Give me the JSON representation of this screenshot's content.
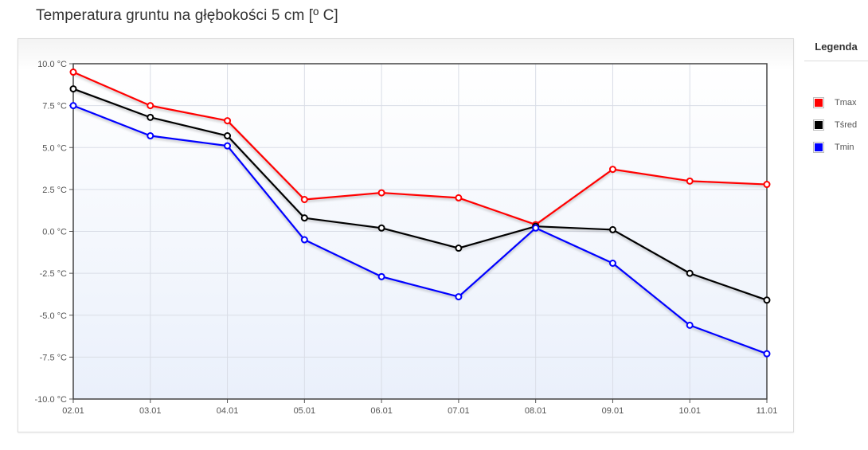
{
  "page": {
    "title": "Temperatura gruntu na głębokości 5 cm [º C]"
  },
  "legend": {
    "title": "Legenda",
    "items": [
      {
        "label": "Tmax",
        "color": "#ff0000"
      },
      {
        "label": "Tśred",
        "color": "#000000"
      },
      {
        "label": "Tmin",
        "color": "#0000ff"
      }
    ]
  },
  "chart_data": {
    "type": "line",
    "title": "Temperatura gruntu na głębokości 5 cm [º C]",
    "categories": [
      "02.01",
      "03.01",
      "04.01",
      "05.01",
      "06.01",
      "07.01",
      "08.01",
      "09.01",
      "10.01",
      "11.01"
    ],
    "y_ticks": [
      "10.0 °C",
      "7.5 °C",
      "5.0 °C",
      "2.5 °C",
      "0.0 °C",
      "-2.5 °C",
      "-5.0 °C",
      "-7.5 °C",
      "-10.0 °C"
    ],
    "ylim": [
      -10,
      10
    ],
    "y_unit": "°C",
    "grid": true,
    "legend_position": "right",
    "series": [
      {
        "name": "Tmax",
        "color": "#ff0000",
        "values": [
          9.5,
          7.5,
          6.6,
          1.9,
          2.3,
          2.0,
          0.4,
          3.7,
          3.0,
          2.8
        ]
      },
      {
        "name": "Tśred",
        "color": "#000000",
        "values": [
          8.5,
          6.8,
          5.7,
          0.8,
          0.2,
          -1.0,
          0.3,
          0.1,
          -2.5,
          -4.1
        ]
      },
      {
        "name": "Tmin",
        "color": "#0000ff",
        "values": [
          7.5,
          5.7,
          5.1,
          -0.5,
          -2.7,
          -3.9,
          0.2,
          -1.9,
          -5.6,
          -7.3
        ]
      }
    ]
  }
}
